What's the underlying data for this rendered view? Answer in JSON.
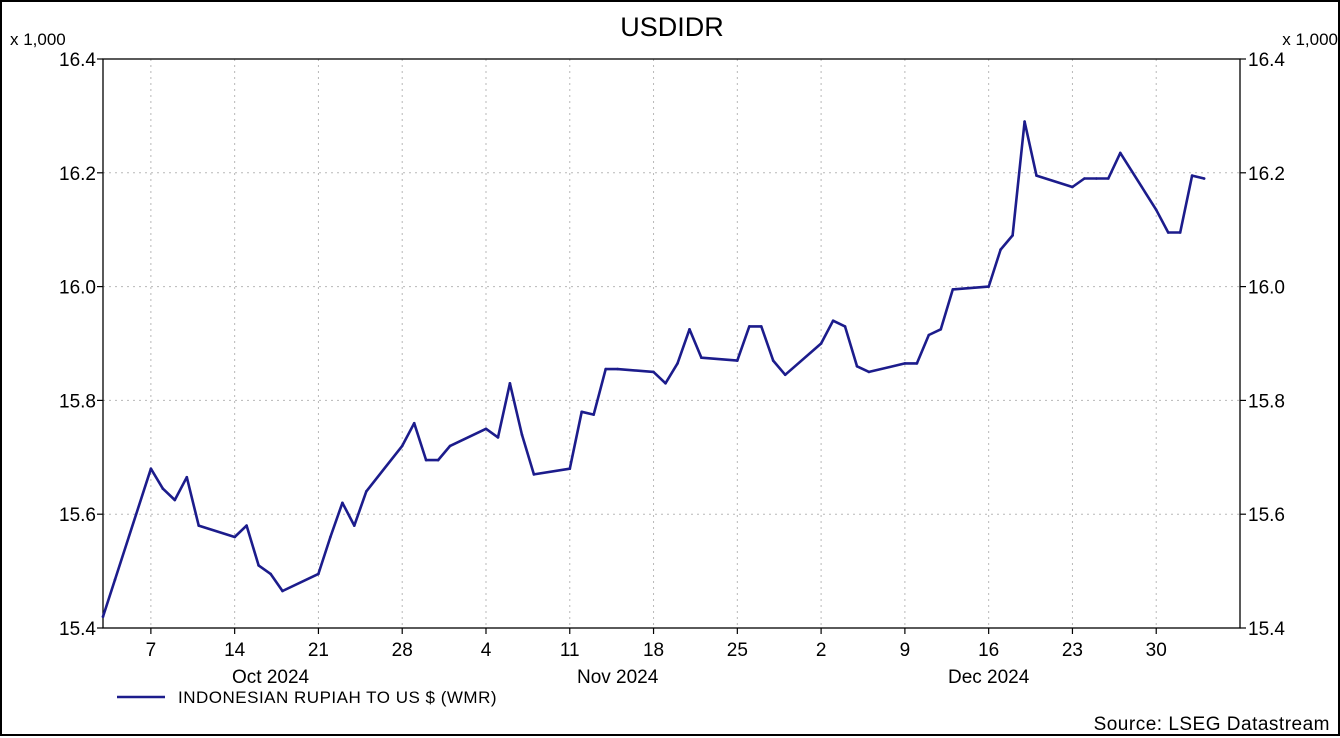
{
  "chart_data": {
    "type": "line",
    "title": "USDIDR",
    "y_multiplier_label": "x 1,000",
    "ylim": [
      15.4,
      16.4
    ],
    "y_ticks": [
      "15.4",
      "15.6",
      "15.8",
      "16.0",
      "16.2",
      "16.4"
    ],
    "grid": true,
    "x_ticks": [
      {
        "label": "7",
        "date": "2024-10-07"
      },
      {
        "label": "14",
        "date": "2024-10-14"
      },
      {
        "label": "21",
        "date": "2024-10-21"
      },
      {
        "label": "28",
        "date": "2024-10-28"
      },
      {
        "label": "4",
        "date": "2024-11-04"
      },
      {
        "label": "11",
        "date": "2024-11-11"
      },
      {
        "label": "18",
        "date": "2024-11-18"
      },
      {
        "label": "25",
        "date": "2024-11-25"
      },
      {
        "label": "2",
        "date": "2024-12-02"
      },
      {
        "label": "9",
        "date": "2024-12-09"
      },
      {
        "label": "16",
        "date": "2024-12-16"
      },
      {
        "label": "23",
        "date": "2024-12-23"
      },
      {
        "label": "30",
        "date": "2024-12-30"
      }
    ],
    "x_month_labels": [
      {
        "label": "Oct 2024",
        "date": "2024-10-17"
      },
      {
        "label": "Nov 2024",
        "date": "2024-11-15"
      },
      {
        "label": "Dec 2024",
        "date": "2024-12-16"
      }
    ],
    "x_range": [
      "2024-10-03",
      "2025-01-06"
    ],
    "legend_position": "bottom-left",
    "series": [
      {
        "name": "INDONESIAN RUPIAH TO US $ (WMR)",
        "color": "#1c1c8c",
        "x": [
          "2024-10-03",
          "2024-10-04",
          "2024-10-07",
          "2024-10-08",
          "2024-10-09",
          "2024-10-10",
          "2024-10-11",
          "2024-10-14",
          "2024-10-15",
          "2024-10-16",
          "2024-10-17",
          "2024-10-18",
          "2024-10-21",
          "2024-10-22",
          "2024-10-23",
          "2024-10-24",
          "2024-10-25",
          "2024-10-28",
          "2024-10-29",
          "2024-10-30",
          "2024-10-31",
          "2024-11-01",
          "2024-11-04",
          "2024-11-05",
          "2024-11-06",
          "2024-11-07",
          "2024-11-08",
          "2024-11-11",
          "2024-11-12",
          "2024-11-13",
          "2024-11-14",
          "2024-11-15",
          "2024-11-18",
          "2024-11-19",
          "2024-11-20",
          "2024-11-21",
          "2024-11-22",
          "2024-11-25",
          "2024-11-26",
          "2024-11-27",
          "2024-11-28",
          "2024-11-29",
          "2024-12-02",
          "2024-12-03",
          "2024-12-04",
          "2024-12-05",
          "2024-12-06",
          "2024-12-09",
          "2024-12-10",
          "2024-12-11",
          "2024-12-12",
          "2024-12-13",
          "2024-12-16",
          "2024-12-17",
          "2024-12-18",
          "2024-12-19",
          "2024-12-20",
          "2024-12-23",
          "2024-12-24",
          "2024-12-25",
          "2024-12-26",
          "2024-12-27",
          "2024-12-30",
          "2024-12-31",
          "2025-01-01",
          "2025-01-02",
          "2025-01-03"
        ],
        "values": [
          15.42,
          15.485,
          15.68,
          15.645,
          15.625,
          15.665,
          15.58,
          15.56,
          15.58,
          15.51,
          15.495,
          15.465,
          15.495,
          15.56,
          15.62,
          15.58,
          15.64,
          15.72,
          15.76,
          15.695,
          15.695,
          15.72,
          15.75,
          15.735,
          15.83,
          15.74,
          15.67,
          15.68,
          15.78,
          15.775,
          15.855,
          15.855,
          15.85,
          15.83,
          15.865,
          15.925,
          15.875,
          15.87,
          15.93,
          15.93,
          15.87,
          15.845,
          15.9,
          15.94,
          15.93,
          15.86,
          15.85,
          15.865,
          15.865,
          15.915,
          15.925,
          15.995,
          16.0,
          16.065,
          16.09,
          16.29,
          16.195,
          16.175,
          16.19,
          16.19,
          16.19,
          16.235,
          16.135,
          16.095,
          16.095,
          16.195,
          16.19
        ]
      }
    ]
  },
  "footer": {
    "source": "Source: LSEG Datastream"
  }
}
